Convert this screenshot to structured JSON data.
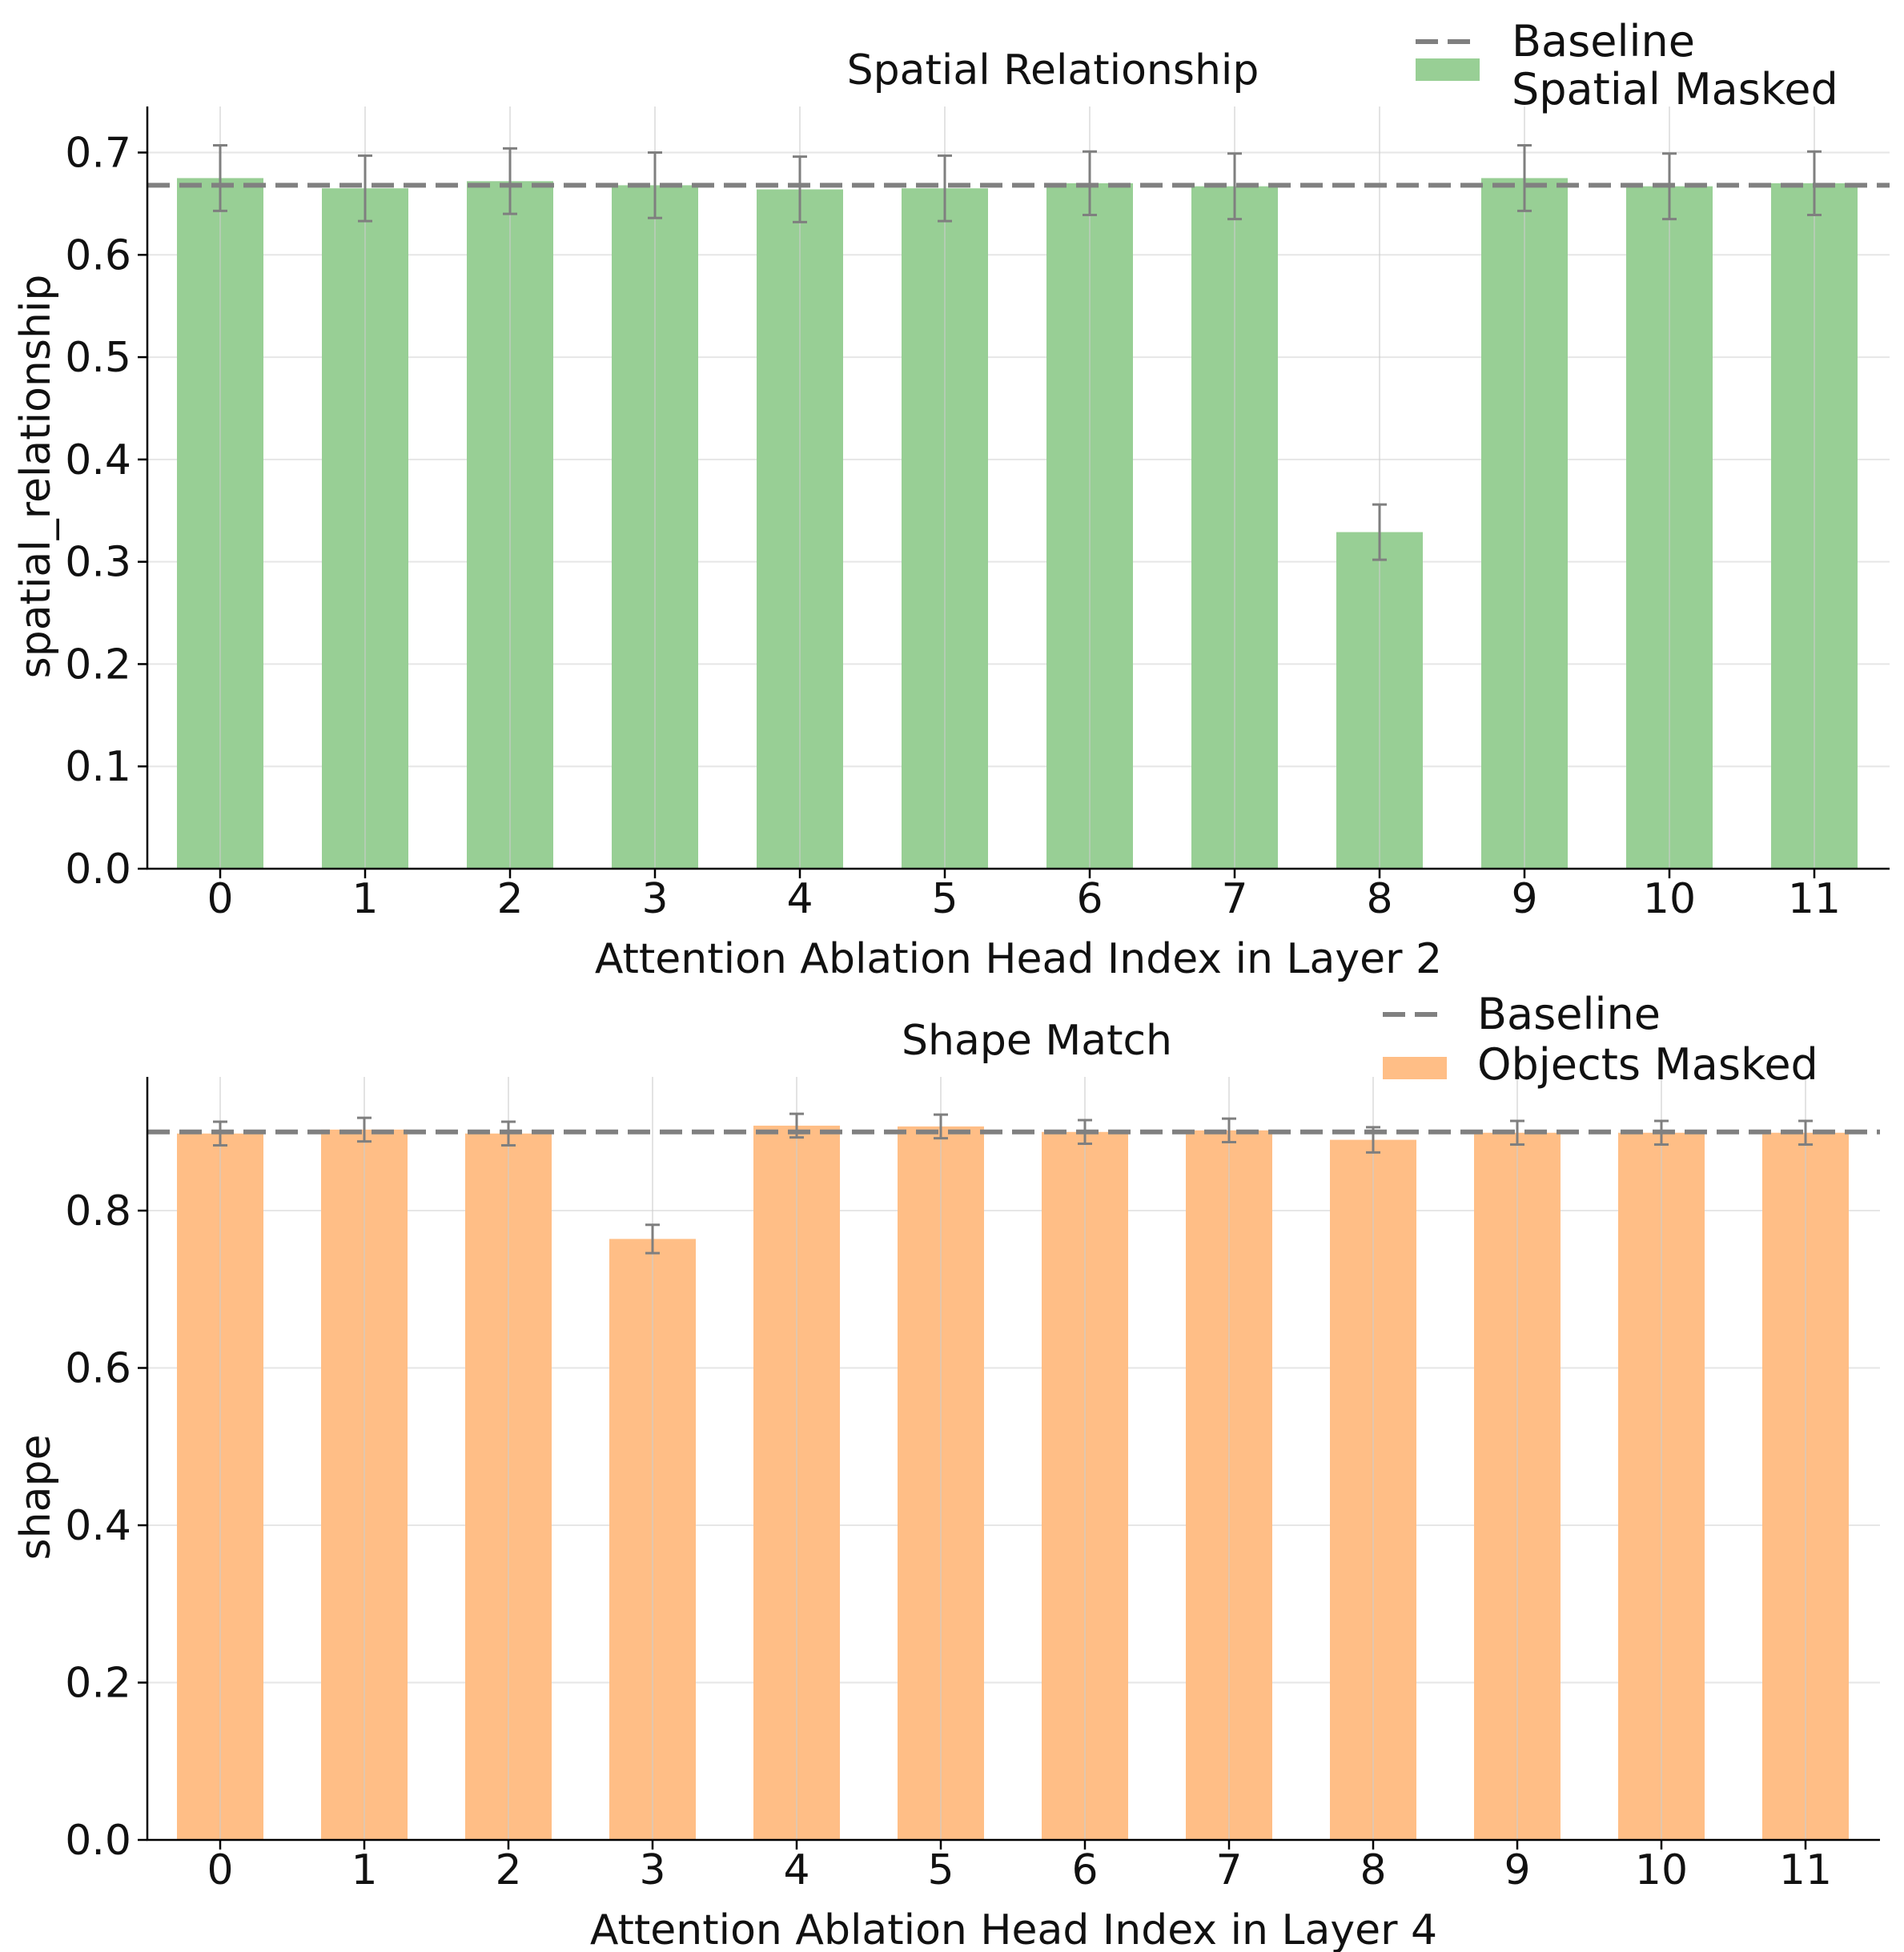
{
  "chart_data": [
    {
      "type": "bar",
      "title": "Spatial Relationship",
      "xlabel": "Attention Ablation Head Index in Layer 2",
      "ylabel": "spatial_relationship",
      "categories": [
        "0",
        "1",
        "2",
        "3",
        "4",
        "5",
        "6",
        "7",
        "8",
        "9",
        "10",
        "11"
      ],
      "series": [
        {
          "name": "Spatial Masked",
          "color": "#98cf95",
          "values": [
            0.675,
            0.665,
            0.672,
            0.668,
            0.664,
            0.665,
            0.67,
            0.667,
            0.329,
            0.675,
            0.667,
            0.67
          ],
          "errors": [
            0.032,
            0.032,
            0.032,
            0.032,
            0.032,
            0.032,
            0.031,
            0.032,
            0.027,
            0.032,
            0.032,
            0.031
          ]
        }
      ],
      "baseline": {
        "name": "Baseline",
        "value": 0.668,
        "color": "#808080"
      },
      "ylim": [
        0,
        0.745
      ],
      "yticks": [
        0.0,
        0.1,
        0.2,
        0.3,
        0.4,
        0.5,
        0.6,
        0.7
      ],
      "ytick_labels": [
        "0.0",
        "0.1",
        "0.2",
        "0.3",
        "0.4",
        "0.5",
        "0.6",
        "0.7"
      ],
      "grid": true,
      "legend": [
        "Baseline",
        "Spatial Masked"
      ],
      "legend_position": "top-right"
    },
    {
      "type": "bar",
      "title": "Shape Match",
      "xlabel": "Attention Ablation Head Index in Layer 4",
      "ylabel": "shape",
      "categories": [
        "0",
        "1",
        "2",
        "3",
        "4",
        "5",
        "6",
        "7",
        "8",
        "9",
        "10",
        "11"
      ],
      "series": [
        {
          "name": "Objects Masked",
          "color": "#ffbe86",
          "values": [
            0.898,
            0.903,
            0.898,
            0.764,
            0.908,
            0.907,
            0.9,
            0.902,
            0.89,
            0.899,
            0.899,
            0.899
          ],
          "errors": [
            0.015,
            0.015,
            0.015,
            0.018,
            0.015,
            0.015,
            0.015,
            0.015,
            0.016,
            0.015,
            0.015,
            0.015
          ]
        }
      ],
      "baseline": {
        "name": "Baseline",
        "value": 0.9,
        "color": "#808080"
      },
      "ylim": [
        0,
        0.97
      ],
      "yticks": [
        0.0,
        0.2,
        0.4,
        0.6,
        0.8
      ],
      "ytick_labels": [
        "0.0",
        "0.2",
        "0.4",
        "0.6",
        "0.8"
      ],
      "grid": true,
      "legend": [
        "Baseline",
        "Objects Masked"
      ],
      "legend_position": "top-right"
    }
  ]
}
